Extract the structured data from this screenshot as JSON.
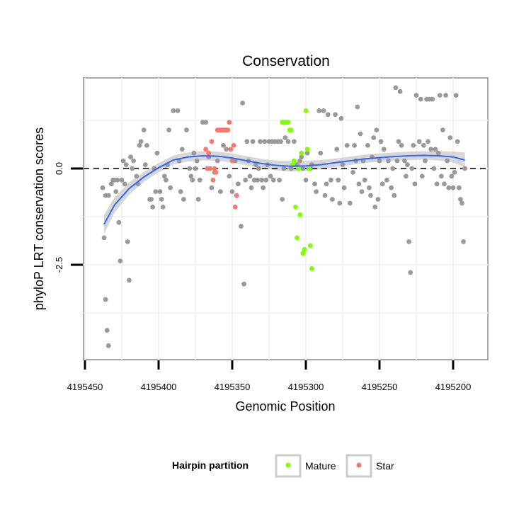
{
  "chart_data": {
    "type": "scatter",
    "title": "Conservation",
    "xlabel": "Genomic Position",
    "ylabel": "phyloP LRT conservation scores",
    "x_reversed": true,
    "xlim": [
      4195455,
      4195185
    ],
    "ylim": [
      -4.9,
      2.35
    ],
    "x_ticks": [
      4195450,
      4195400,
      4195350,
      4195300,
      4195250,
      4195200
    ],
    "y_ticks": [
      0.0,
      -2.5
    ],
    "y_tick_labels": [
      "0.0",
      "-2.5"
    ],
    "grid": true,
    "reference_line": {
      "y": 0,
      "style": "dashed"
    },
    "legend": {
      "title": "Hairpin partition",
      "position": "bottom",
      "entries": [
        {
          "name": "Mature",
          "color": "#80ff00"
        },
        {
          "name": "Star",
          "color": "#f8766d"
        }
      ]
    },
    "colors": {
      "background": "#000000",
      "gray_points": "#999999",
      "smooth_line": "#3366ff",
      "ribbon": "#d0d0d0"
    },
    "series": [
      {
        "name": "",
        "color": "#999999",
        "points": [
          [
            4195437,
            -1.8
          ],
          [
            4195436,
            -3.4
          ],
          [
            4195435,
            -4.2
          ],
          [
            4195434,
            -4.6
          ],
          [
            4195438,
            -0.5
          ],
          [
            4195436,
            -0.7
          ],
          [
            4195434,
            -0.7
          ],
          [
            4195432,
            -0.4
          ],
          [
            4195431,
            -0.3
          ],
          [
            4195430,
            -0.3
          ],
          [
            4195429,
            -0.6
          ],
          [
            4195428,
            -0.3
          ],
          [
            4195427,
            -1.4
          ],
          [
            4195426,
            -2.4
          ],
          [
            4195425,
            -0.3
          ],
          [
            4195424,
            0.2
          ],
          [
            4195423,
            -0.4
          ],
          [
            4195422,
            0.1
          ],
          [
            4195421,
            -1.9
          ],
          [
            4195420,
            -2.9
          ],
          [
            4195419,
            0.3
          ],
          [
            4195418,
            0.0
          ],
          [
            4195417,
            0.2
          ],
          [
            4195415,
            -0.2
          ],
          [
            4195414,
            -0.4
          ],
          [
            4195413,
            0.6
          ],
          [
            4195412,
            0.7
          ],
          [
            4195410,
            1.0
          ],
          [
            4195409,
            0.1
          ],
          [
            4195408,
            0.6
          ],
          [
            4195406,
            -0.8
          ],
          [
            4195405,
            -0.8
          ],
          [
            4195404,
            -1.0
          ],
          [
            4195403,
            0.0
          ],
          [
            4195402,
            -0.6
          ],
          [
            4195401,
            0.4
          ],
          [
            4195399,
            -0.6
          ],
          [
            4195398,
            -0.8
          ],
          [
            4195397,
            -1.0
          ],
          [
            4195396,
            -0.2
          ],
          [
            4195395,
            -0.3
          ],
          [
            4195394,
            0.1
          ],
          [
            4195393,
            1.0
          ],
          [
            4195392,
            -0.5
          ],
          [
            4195390,
            1.5
          ],
          [
            4195387,
            1.5
          ],
          [
            4195386,
            0.2
          ],
          [
            4195385,
            -0.6
          ],
          [
            4195384,
            0.5
          ],
          [
            4195383,
            -0.8
          ],
          [
            4195381,
            1.0
          ],
          [
            4195379,
            0.0
          ],
          [
            4195378,
            -0.2
          ],
          [
            4195377,
            -0.3
          ],
          [
            4195376,
            0.4
          ],
          [
            4195375,
            0.0
          ],
          [
            4195374,
            0.2
          ],
          [
            4195373,
            -0.8
          ],
          [
            4195372,
            -0.3
          ],
          [
            4195370,
            1.2
          ],
          [
            4195368,
            1.2
          ],
          [
            4195366,
            0.3
          ],
          [
            4195364,
            -0.5
          ],
          [
            4195362,
            -0.1
          ],
          [
            4195360,
            0.2
          ],
          [
            4195358,
            -0.6
          ],
          [
            4195356,
            0.6
          ],
          [
            4195354,
            0.5
          ],
          [
            4195352,
            -0.2
          ],
          [
            4195350,
            -0.6
          ],
          [
            4195348,
            0.2
          ],
          [
            4195346,
            -0.4
          ],
          [
            4195344,
            -1.5
          ],
          [
            4195343,
            1.7
          ],
          [
            4195342,
            -3.0
          ],
          [
            4195341,
            -0.3
          ],
          [
            4195340,
            0.7
          ],
          [
            4195339,
            0.2
          ],
          [
            4195338,
            -0.2
          ],
          [
            4195337,
            -0.5
          ],
          [
            4195336,
            0.7
          ],
          [
            4195335,
            -0.3
          ],
          [
            4195334,
            0.1
          ],
          [
            4195333,
            -0.3
          ],
          [
            4195332,
            0.0
          ],
          [
            4195331,
            0.7
          ],
          [
            4195330,
            -0.3
          ],
          [
            4195329,
            -0.5
          ],
          [
            4195328,
            0.7
          ],
          [
            4195327,
            -0.3
          ],
          [
            4195326,
            0.1
          ],
          [
            4195325,
            0.7
          ],
          [
            4195324,
            -0.2
          ],
          [
            4195323,
            0.7
          ],
          [
            4195322,
            -0.3
          ],
          [
            4195321,
            0.7
          ],
          [
            4195319,
            0.7
          ],
          [
            4195318,
            -0.3
          ],
          [
            4195317,
            0.7
          ],
          [
            4195316,
            -0.8
          ],
          [
            4195315,
            0.0
          ],
          [
            4195314,
            0.8
          ],
          [
            4195312,
            0.7
          ],
          [
            4195310,
            0.0
          ],
          [
            4195308,
            0.7
          ],
          [
            4195306,
            0.1
          ],
          [
            4195304,
            0.2
          ],
          [
            4195303,
            0.3
          ],
          [
            4195302,
            0.0
          ],
          [
            4195300,
            -0.3
          ],
          [
            4195299,
            0.4
          ],
          [
            4195297,
            0.0
          ],
          [
            4195296,
            0.1
          ],
          [
            4195294,
            -0.4
          ],
          [
            4195293,
            -0.6
          ],
          [
            4195291,
            1.5
          ],
          [
            4195290,
            0.4
          ],
          [
            4195288,
            1.5
          ],
          [
            4195287,
            -0.7
          ],
          [
            4195286,
            -0.4
          ],
          [
            4195285,
            1.4
          ],
          [
            4195283,
            -0.3
          ],
          [
            4195282,
            -0.8
          ],
          [
            4195280,
            1.4
          ],
          [
            4195279,
            0.5
          ],
          [
            4195278,
            -0.3
          ],
          [
            4195277,
            -0.9
          ],
          [
            4195276,
            1.3
          ],
          [
            4195275,
            0.1
          ],
          [
            4195274,
            -0.5
          ],
          [
            4195272,
            0.6
          ],
          [
            4195270,
            -0.9
          ],
          [
            4195268,
            -0.1
          ],
          [
            4195267,
            0.6
          ],
          [
            4195266,
            0.2
          ],
          [
            4195265,
            1.6
          ],
          [
            4195264,
            -0.4
          ],
          [
            4195263,
            0.9
          ],
          [
            4195262,
            -0.6
          ],
          [
            4195261,
            0.2
          ],
          [
            4195260,
            -0.3
          ],
          [
            4195258,
            0.6
          ],
          [
            4195257,
            -0.5
          ],
          [
            4195256,
            -0.7
          ],
          [
            4195255,
            0.3
          ],
          [
            4195254,
            0.8
          ],
          [
            4195253,
            -1.0
          ],
          [
            4195252,
            1.0
          ],
          [
            4195251,
            -0.8
          ],
          [
            4195250,
            0.2
          ],
          [
            4195249,
            0.7
          ],
          [
            4195248,
            -0.4
          ],
          [
            4195247,
            0.5
          ],
          [
            4195245,
            -0.3
          ],
          [
            4195244,
            0.2
          ],
          [
            4195242,
            -0.5
          ],
          [
            4195241,
            0.0
          ],
          [
            4195240,
            -0.7
          ],
          [
            4195239,
            2.1
          ],
          [
            4195238,
            0.2
          ],
          [
            4195237,
            0.7
          ],
          [
            4195236,
            2.0
          ],
          [
            4195235,
            0.6
          ],
          [
            4195233,
            0.2
          ],
          [
            4195232,
            -0.2
          ],
          [
            4195231,
            0.1
          ],
          [
            4195230,
            -1.9
          ],
          [
            4195229,
            -2.7
          ],
          [
            4195228,
            0.0
          ],
          [
            4195227,
            0.6
          ],
          [
            4195226,
            -0.4
          ],
          [
            4195225,
            1.9
          ],
          [
            4195223,
            0.7
          ],
          [
            4195222,
            1.8
          ],
          [
            4195221,
            -0.2
          ],
          [
            4195220,
            0.6
          ],
          [
            4195219,
            0.2
          ],
          [
            4195218,
            1.8
          ],
          [
            4195217,
            0.7
          ],
          [
            4195216,
            1.8
          ],
          [
            4195215,
            0.5
          ],
          [
            4195214,
            1.8
          ],
          [
            4195213,
            0.0
          ],
          [
            4195212,
            0.5
          ],
          [
            4195211,
            -0.4
          ],
          [
            4195210,
            0.4
          ],
          [
            4195209,
            1.9
          ],
          [
            4195208,
            -0.2
          ],
          [
            4195207,
            1.0
          ],
          [
            4195206,
            -0.4
          ],
          [
            4195205,
            1.9
          ],
          [
            4195204,
            0.2
          ],
          [
            4195203,
            -0.5
          ],
          [
            4195202,
            0.8
          ],
          [
            4195201,
            -0.2
          ],
          [
            4195200,
            -0.5
          ],
          [
            4195199,
            -0.1
          ],
          [
            4195198,
            1.9
          ],
          [
            4195197,
            0.7
          ],
          [
            4195196,
            -0.5
          ],
          [
            4195195,
            -0.8
          ],
          [
            4195194,
            -0.9
          ],
          [
            4195193,
            -1.9
          ],
          [
            4195192,
            0.0
          ]
        ]
      },
      {
        "name": "Mature",
        "color": "#80ff00",
        "points": [
          [
            4195316,
            1.2
          ],
          [
            4195315,
            1.2
          ],
          [
            4195314,
            1.2
          ],
          [
            4195313,
            1.2
          ],
          [
            4195312,
            1.2
          ],
          [
            4195311,
            1.0
          ],
          [
            4195310,
            1.0
          ],
          [
            4195309,
            0.1
          ],
          [
            4195308,
            0.2
          ],
          [
            4195307,
            -1.0
          ],
          [
            4195306,
            -1.8
          ],
          [
            4195305,
            0.0
          ],
          [
            4195304,
            -1.2
          ],
          [
            4195303,
            0.4
          ],
          [
            4195302,
            -2.2
          ],
          [
            4195301,
            -2.1
          ],
          [
            4195300,
            1.5
          ],
          [
            4195299,
            0.5
          ],
          [
            4195298,
            0.0
          ],
          [
            4195297,
            -2.0
          ],
          [
            4195296,
            -2.6
          ]
        ]
      },
      {
        "name": "Star",
        "color": "#f8766d",
        "points": [
          [
            4195368,
            0.5
          ],
          [
            4195367,
            0.0
          ],
          [
            4195366,
            0.4
          ],
          [
            4195365,
            0.0
          ],
          [
            4195364,
            0.7
          ],
          [
            4195363,
            -0.3
          ],
          [
            4195362,
            0.0
          ],
          [
            4195361,
            -0.1
          ],
          [
            4195360,
            1.0
          ],
          [
            4195359,
            1.0
          ],
          [
            4195358,
            1.0
          ],
          [
            4195357,
            1.0
          ],
          [
            4195356,
            1.0
          ],
          [
            4195355,
            1.0
          ],
          [
            4195354,
            1.0
          ],
          [
            4195353,
            1.0
          ],
          [
            4195352,
            1.2
          ],
          [
            4195351,
            0.5
          ],
          [
            4195350,
            0.2
          ],
          [
            4195349,
            0.6
          ],
          [
            4195348,
            -1.0
          ],
          [
            4195347,
            -0.7
          ]
        ]
      }
    ],
    "smooth": {
      "name": "",
      "x": [
        4195437,
        4195430,
        4195420,
        4195410,
        4195400,
        4195390,
        4195380,
        4195370,
        4195360,
        4195350,
        4195340,
        4195330,
        4195320,
        4195310,
        4195300,
        4195290,
        4195280,
        4195270,
        4195260,
        4195250,
        4195240,
        4195230,
        4195220,
        4195210,
        4195200,
        4195192
      ],
      "y": [
        -1.45,
        -0.95,
        -0.52,
        -0.22,
        0.02,
        0.22,
        0.3,
        0.33,
        0.32,
        0.27,
        0.2,
        0.13,
        0.08,
        0.06,
        0.07,
        0.1,
        0.15,
        0.2,
        0.25,
        0.28,
        0.31,
        0.33,
        0.34,
        0.33,
        0.3,
        0.22
      ],
      "se": [
        0.25,
        0.2,
        0.16,
        0.13,
        0.12,
        0.12,
        0.12,
        0.12,
        0.12,
        0.12,
        0.12,
        0.12,
        0.13,
        0.14,
        0.13,
        0.12,
        0.11,
        0.11,
        0.11,
        0.11,
        0.11,
        0.11,
        0.11,
        0.12,
        0.14,
        0.2
      ]
    }
  }
}
